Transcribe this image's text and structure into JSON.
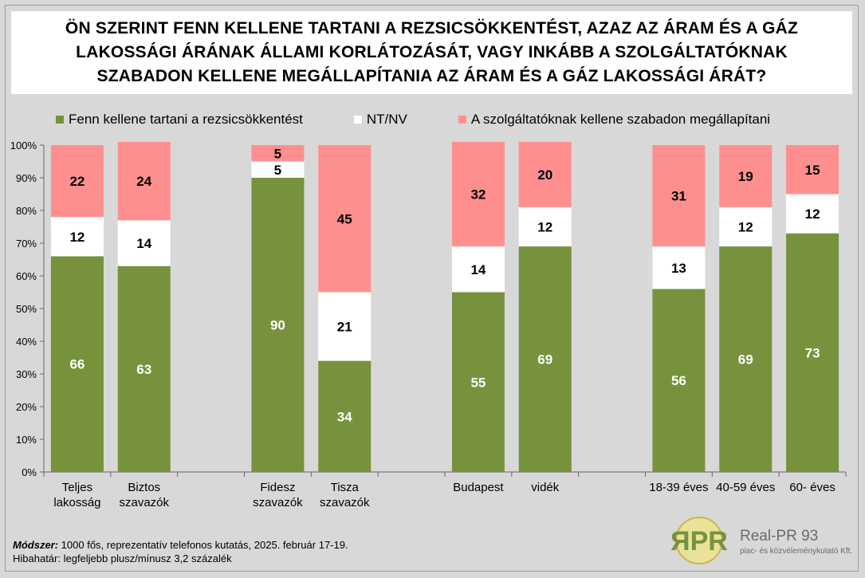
{
  "title_lines": [
    "ÖN SZERINT FENN KELLENE TARTANI A REZSICSÖKKENTÉST, AZAZ AZ ÁRAM ÉS A GÁZ",
    "LAKOSSÁGI ÁRÁNAK ÁLLAMI KORLÁTOZÁSÁT, VAGY INKÁBB A SZOLGÁLTATÓKNAK",
    "SZABADON KELLENE MEGÁLLAPÍTANIA AZ ÁRAM ÉS A GÁZ LAKOSSÁGI ÁRÁT?"
  ],
  "legend": [
    {
      "label": "Fenn kellene tartani a rezsicsökkentést",
      "color": "#76923c"
    },
    {
      "label": "NT/NV",
      "color": "#ffffff"
    },
    {
      "label": "A szolgáltatóknak kellene szabadon megállapítani",
      "color": "#ff8f8f"
    }
  ],
  "chart_data": {
    "type": "bar",
    "stacked": true,
    "ylim": [
      0,
      100
    ],
    "yticks": [
      "0%",
      "10%",
      "20%",
      "30%",
      "40%",
      "50%",
      "60%",
      "70%",
      "80%",
      "90%",
      "100%"
    ],
    "categories": [
      [
        "Teljes",
        "lakosság"
      ],
      [
        "Biztos",
        "szavazók"
      ],
      [],
      [
        "Fidesz",
        "szavazók"
      ],
      [
        "Tisza",
        "szavazók"
      ],
      [],
      [
        "Budapest"
      ],
      [
        "vidék"
      ],
      [],
      [
        "18-39 éves"
      ],
      [
        "40-59 éves"
      ],
      [
        "60-  éves"
      ]
    ],
    "series": [
      {
        "name": "Fenn kellene tartani a rezsicsökkentést",
        "color": "#76923c",
        "label_color": "#ffffff",
        "values": [
          66,
          63,
          null,
          90,
          34,
          null,
          55,
          69,
          null,
          56,
          69,
          73
        ]
      },
      {
        "name": "NT/NV",
        "color": "#ffffff",
        "label_color": "#000000",
        "values": [
          12,
          14,
          null,
          5,
          21,
          null,
          14,
          12,
          null,
          13,
          12,
          12
        ]
      },
      {
        "name": "A szolgáltatóknak kellene szabadon megállapítani",
        "color": "#ff8f8f",
        "label_color": "#000000",
        "values": [
          22,
          24,
          null,
          5,
          45,
          null,
          32,
          20,
          null,
          31,
          19,
          15
        ]
      }
    ],
    "grid": false
  },
  "footer": {
    "method_label": "Módszer:",
    "method_text": " 1000 fős, reprezentatív telefonos kutatás, 2025. február 17-19.",
    "error_text": "Hibahatár: legfeljebb plusz/mínusz 3,2 százalék"
  },
  "logo": {
    "mark": "ЯPR",
    "name": "Real-PR 93",
    "tagline": "piac- és közvéleménykutató Kft."
  }
}
